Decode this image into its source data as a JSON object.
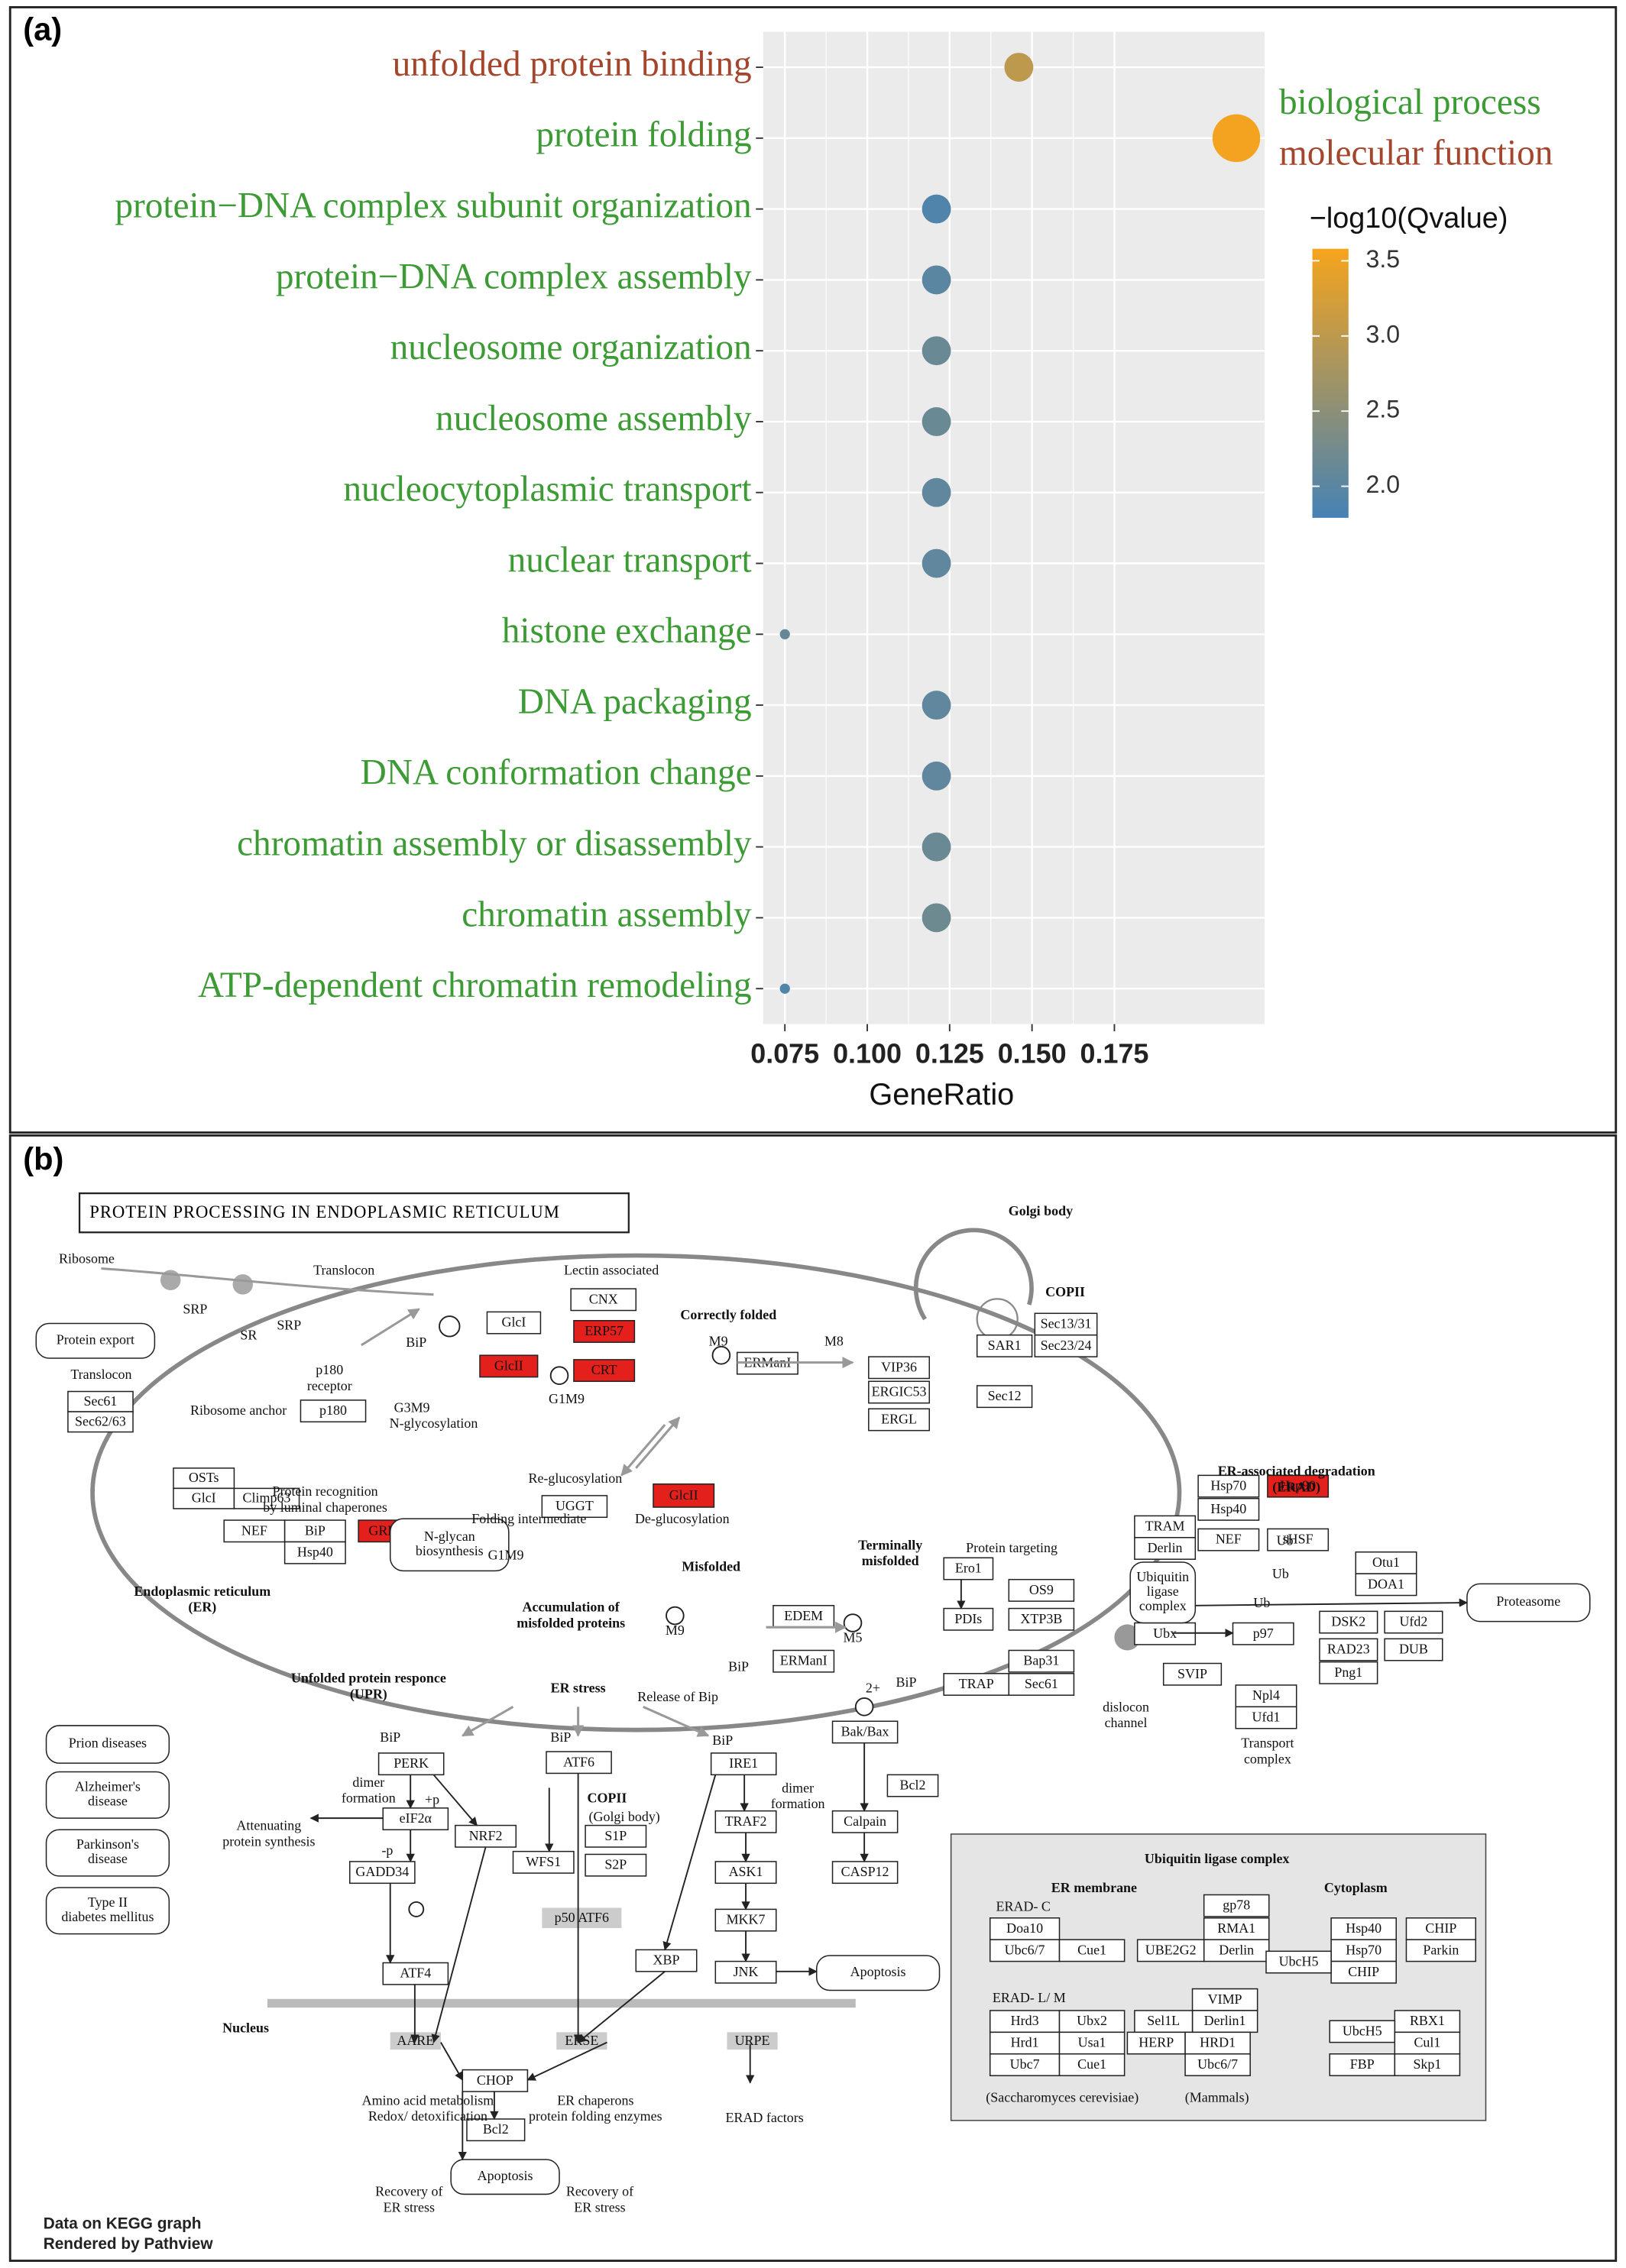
{
  "chart_data": {
    "type": "scatter",
    "panel_label": "(a)",
    "categories": [
      "unfolded protein binding",
      "protein folding",
      "protein−DNA complex subunit organization",
      "protein−DNA complex assembly",
      "nucleosome organization",
      "nucleosome assembly",
      "nucleocytoplasmic transport",
      "nuclear transport",
      "histone exchange",
      "DNA packaging",
      "DNA conformation change",
      "chromatin assembly or disassembly",
      "chromatin assembly",
      "ATP-dependent chromatin remodeling"
    ],
    "category_groups": [
      1,
      0,
      0,
      0,
      0,
      0,
      0,
      0,
      0,
      0,
      0,
      0,
      0,
      0
    ],
    "groups": [
      {
        "name": "biological process",
        "color": "#3d9b35"
      },
      {
        "name": "molecular function",
        "color": "#a4452c"
      }
    ],
    "values": [
      0.146,
      0.212,
      0.121,
      0.121,
      0.121,
      0.121,
      0.121,
      0.121,
      0.075,
      0.121,
      0.121,
      0.121,
      0.121,
      0.075
    ],
    "sizes": [
      5,
      7,
      5,
      5,
      5,
      5,
      5,
      5,
      3,
      5,
      5,
      5,
      5,
      3
    ],
    "color_values": [
      3.0,
      3.55,
      1.9,
      2.0,
      2.15,
      2.15,
      2.05,
      2.05,
      2.1,
      2.05,
      2.05,
      2.15,
      2.2,
      1.9
    ],
    "x_label": "GeneRatio",
    "xlim": [
      0.0684,
      0.2206
    ],
    "xticks": [
      0.075,
      {
        "value": 0.1,
        "label": "0.100"
      },
      0.125,
      {
        "value": 0.15,
        "label": "0.150"
      },
      0.175
    ],
    "grid": true,
    "colorbar": {
      "title": "−log10(Qvalue)",
      "lim": [
        1.79,
        3.58
      ],
      "colors": [
        "#4682b4",
        "#f6a41c"
      ],
      "ticks": [
        {
          "value": 2,
          "label": "2.0"
        },
        {
          "value": 2.5,
          "label": "2.5"
        },
        {
          "value": 3,
          "label": "3.0"
        },
        {
          "value": 3.5,
          "label": "3.5"
        }
      ]
    }
  },
  "diagram": {
    "panel_label": "(b)",
    "title": "PROTEIN PROCESSING IN ENDOPLASMIC RETICULUM",
    "highlight_color": "#e3201b",
    "boxes": [
      {
        "label": "Sec61"
      },
      {
        "label": "Sec62/63"
      },
      {
        "label": "p180"
      },
      {
        "label": "OSTs"
      },
      {
        "label": "GlcI"
      },
      {
        "label": "Climp63"
      },
      {
        "label": "GlcI"
      },
      {
        "label": "CNX"
      },
      {
        "label": "ERP57",
        "highlighted": true
      },
      {
        "label": "GlcII",
        "highlighted": true
      },
      {
        "label": "CRT",
        "highlighted": true
      },
      {
        "label": "ERManI"
      },
      {
        "label": "VIP36"
      },
      {
        "label": "ERGIC53"
      },
      {
        "label": "ERGL"
      },
      {
        "label": "SAR1"
      },
      {
        "label": "Sec13/31"
      },
      {
        "label": "Sec23/24"
      },
      {
        "label": "Sec12"
      },
      {
        "label": "UGGT"
      },
      {
        "label": "GlcII",
        "highlighted": true
      },
      {
        "label": "NEF"
      },
      {
        "label": "BiP"
      },
      {
        "label": "GRP94",
        "highlighted": true
      },
      {
        "label": "Hsp40"
      },
      {
        "label": "Ero1"
      },
      {
        "label": "PDIs"
      },
      {
        "label": "OS9"
      },
      {
        "label": "XTP3B"
      },
      {
        "label": "EDEM"
      },
      {
        "label": "ERManI"
      },
      {
        "label": "Bap31"
      },
      {
        "label": "TRAP"
      },
      {
        "label": "Sec61"
      },
      {
        "label": "Hsp70"
      },
      {
        "label": "Hsp90",
        "highlighted": true
      },
      {
        "label": "Hsp40"
      },
      {
        "label": "NEF"
      },
      {
        "label": "sHSF"
      },
      {
        "label": "TRAM"
      },
      {
        "label": "Derlin"
      },
      {
        "label": "Ubx"
      },
      {
        "label": "p97"
      },
      {
        "label": "SVIP"
      },
      {
        "label": "Npl4"
      },
      {
        "label": "Ufd1"
      },
      {
        "label": "Otu1"
      },
      {
        "label": "DOA1"
      },
      {
        "label": "DSK2"
      },
      {
        "label": "Ufd2"
      },
      {
        "label": "RAD23"
      },
      {
        "label": "DUB"
      },
      {
        "label": "Png1"
      },
      {
        "label": "PERK"
      },
      {
        "label": "eIF2α"
      },
      {
        "label": "GADD34"
      },
      {
        "label": "NRF2"
      },
      {
        "label": "ATF4"
      },
      {
        "label": "ATF6"
      },
      {
        "label": "WFS1"
      },
      {
        "label": "S1P"
      },
      {
        "label": "S2P"
      },
      {
        "label": "IRE1"
      },
      {
        "label": "TRAF2"
      },
      {
        "label": "ASK1"
      },
      {
        "label": "MKK7"
      },
      {
        "label": "JNK"
      },
      {
        "label": "XBP"
      },
      {
        "label": "Bak/Bax"
      },
      {
        "label": "Bcl2"
      },
      {
        "label": "Calpain"
      },
      {
        "label": "CASP12"
      },
      {
        "label": "CHOP"
      },
      {
        "label": "Bcl2"
      },
      {
        "label": "Doa10"
      },
      {
        "label": "Ubc6/7"
      },
      {
        "label": "Cue1"
      },
      {
        "label": "gp78"
      },
      {
        "label": "RMA1"
      },
      {
        "label": "Derlin"
      },
      {
        "label": "UBE2G2"
      },
      {
        "label": "Hsp40"
      },
      {
        "label": "Hsp70"
      },
      {
        "label": "CHIP"
      },
      {
        "label": "UbcH5"
      },
      {
        "label": "CHIP"
      },
      {
        "label": "Parkin"
      },
      {
        "label": "Hrd3"
      },
      {
        "label": "Ubx2"
      },
      {
        "label": "Hrd1"
      },
      {
        "label": "Usa1"
      },
      {
        "label": "Ubc7"
      },
      {
        "label": "Cue1"
      },
      {
        "label": "VIMP"
      },
      {
        "label": "Derlin1"
      },
      {
        "label": "Sel1L"
      },
      {
        "label": "HERP"
      },
      {
        "label": "HRD1"
      },
      {
        "label": "Ubc6/7"
      },
      {
        "label": "RBX1"
      },
      {
        "label": "UbcH5"
      },
      {
        "label": "Cul1"
      },
      {
        "label": "FBP"
      },
      {
        "label": "Skp1"
      }
    ],
    "rounded_boxes": [
      {
        "lines": [
          "Protein export"
        ]
      },
      {
        "lines": [
          "N-glycan",
          "biosynthesis"
        ]
      },
      {
        "lines": [
          "Proteasome"
        ]
      },
      {
        "lines": [
          "Apoptosis"
        ]
      },
      {
        "lines": [
          "Apoptosis"
        ]
      },
      {
        "lines": [
          "Prion diseases"
        ]
      },
      {
        "lines": [
          "Alzheimer's",
          "disease"
        ]
      },
      {
        "lines": [
          "Parkinson's",
          "disease"
        ]
      },
      {
        "lines": [
          "Type II",
          "diabetes mellitus"
        ]
      },
      {
        "lines": [
          "Ubiquitin",
          "ligase",
          "complex"
        ]
      }
    ],
    "gray_boxes": [
      "p50 ATF6",
      "AARE",
      "ERSE",
      "URPE"
    ],
    "labels": [
      {
        "lines": [
          "Ribosome"
        ]
      },
      {
        "lines": [
          "Translocon"
        ]
      },
      {
        "lines": [
          "SRP"
        ]
      },
      {
        "lines": [
          "SR"
        ]
      },
      {
        "lines": [
          "SRP"
        ]
      },
      {
        "lines": [
          "p180",
          "receptor"
        ]
      },
      {
        "lines": [
          "Translocon"
        ]
      },
      {
        "lines": [
          "Ribosome anchor"
        ]
      },
      {
        "lines": [
          "BiP"
        ]
      },
      {
        "lines": [
          "G3M9"
        ]
      },
      {
        "lines": [
          "N-glycosylation"
        ]
      },
      {
        "lines": [
          "G1M9"
        ]
      },
      {
        "lines": [
          "Lectin associated"
        ]
      },
      {
        "lines": [
          "Correctly folded"
        ],
        "bold": true
      },
      {
        "lines": [
          "M9"
        ]
      },
      {
        "lines": [
          "M8"
        ]
      },
      {
        "lines": [
          "Golgi body"
        ],
        "bold": true
      },
      {
        "lines": [
          "COPII"
        ],
        "bold": true
      },
      {
        "lines": [
          "Re-glucosylation"
        ]
      },
      {
        "lines": [
          "Protein recognition",
          "by luminal chaperones"
        ]
      },
      {
        "lines": [
          "Folding intermediate"
        ]
      },
      {
        "lines": [
          "De-glucosylation"
        ]
      },
      {
        "lines": [
          "G1M9"
        ]
      },
      {
        "lines": [
          "Misfolded"
        ],
        "bold": true
      },
      {
        "lines": [
          "Protein targeting"
        ]
      },
      {
        "lines": [
          "Terminally",
          "misfolded"
        ],
        "bold": true
      },
      {
        "lines": [
          "ER-associated degradation",
          "(ERAD)"
        ],
        "bold": true
      },
      {
        "lines": [
          "Endoplasmic reticulum",
          "(ER)"
        ],
        "bold": true
      },
      {
        "lines": [
          "Accumulation of",
          "misfolded proteins"
        ],
        "bold": true
      },
      {
        "lines": [
          "M9"
        ]
      },
      {
        "lines": [
          "M5"
        ]
      },
      {
        "lines": [
          "BiP"
        ]
      },
      {
        "lines": [
          "BiP"
        ]
      },
      {
        "lines": [
          "2+"
        ]
      },
      {
        "lines": [
          "dislocon",
          "channel"
        ]
      },
      {
        "lines": [
          "Transport",
          "complex"
        ]
      },
      {
        "lines": [
          "Unfolded protein responce",
          "(UPR)"
        ],
        "bold": true
      },
      {
        "lines": [
          "ER stress"
        ],
        "bold": true
      },
      {
        "lines": [
          "Release of Bip"
        ]
      },
      {
        "lines": [
          "BiP"
        ]
      },
      {
        "lines": [
          "BiP"
        ]
      },
      {
        "lines": [
          "BiP"
        ]
      },
      {
        "lines": [
          "dimer",
          "formation"
        ]
      },
      {
        "lines": [
          "+p"
        ]
      },
      {
        "lines": [
          "-p"
        ]
      },
      {
        "lines": [
          "Attenuating",
          "protein synthesis"
        ]
      },
      {
        "lines": [
          "COPII"
        ],
        "bold": true
      },
      {
        "lines": [
          "(Golgi body)"
        ]
      },
      {
        "lines": [
          "dimer",
          "formation"
        ]
      },
      {
        "lines": [
          "Nucleus"
        ],
        "bold": true
      },
      {
        "lines": [
          "Amino acid  metabolism",
          "Redox/ detoxification"
        ]
      },
      {
        "lines": [
          "ER chaperons",
          "protein folding enzymes"
        ]
      },
      {
        "lines": [
          "ERAD factors"
        ]
      },
      {
        "lines": [
          "Recovery of",
          "ER stress"
        ]
      },
      {
        "lines": [
          "Recovery of",
          "ER stress"
        ]
      },
      {
        "lines": [
          "Ub"
        ]
      },
      {
        "lines": [
          "Ub"
        ]
      },
      {
        "lines": [
          "Ub"
        ]
      },
      {
        "lines": [
          "Ubiquitin ligase complex"
        ],
        "bold": true
      },
      {
        "lines": [
          "ER membrane"
        ],
        "bold": true
      },
      {
        "lines": [
          "Cytoplasm"
        ],
        "bold": true
      },
      {
        "lines": [
          "ERAD- C"
        ]
      },
      {
        "lines": [
          "ERAD- L/ M"
        ]
      },
      {
        "lines": [
          "(Saccharomyces cerevisiae)"
        ]
      },
      {
        "lines": [
          "(Mammals)"
        ]
      }
    ],
    "footer": [
      "Data on KEGG graph",
      "Rendered by Pathview"
    ]
  }
}
